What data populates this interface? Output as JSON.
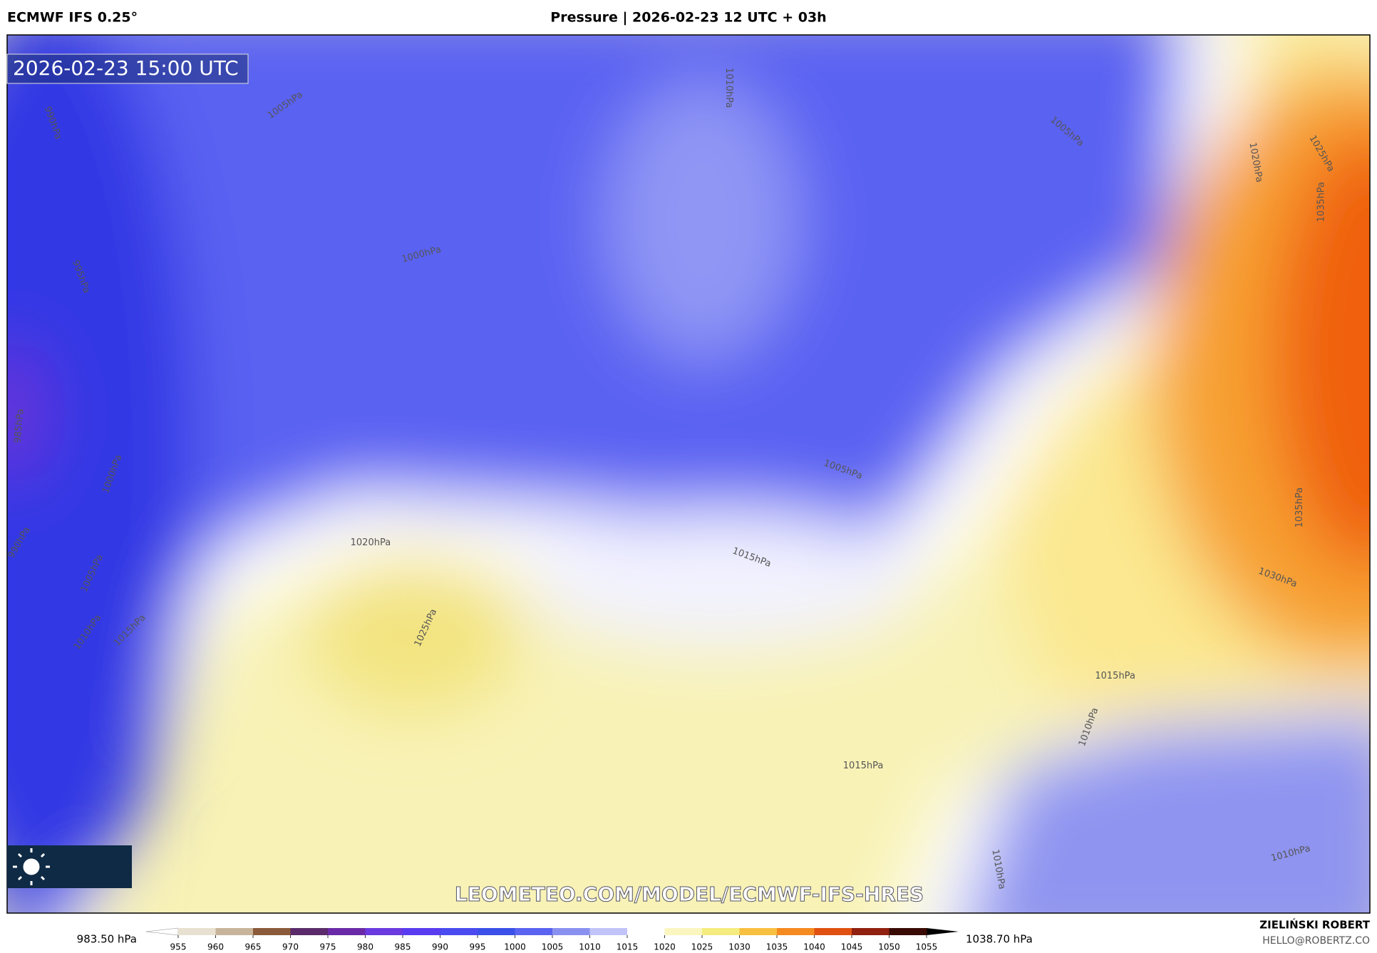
{
  "header": {
    "source": "ECMWF IFS 0.25°",
    "title": "Pressure | 2026-02-23 12 UTC + 03h"
  },
  "map": {
    "timestamp": "2026-02-23 15:00 UTC",
    "watermark": "LEOMETEO.COM/MODEL/ECMWF-IFS-HRES",
    "contour_labels": [
      "1005hPa",
      "1010hPa",
      "1005hPa",
      "1020hPa",
      "1025hPa",
      "1035hPa",
      "1000hPa",
      "995hPa",
      "990hPa",
      "985hPa",
      "1000hPa",
      "990hPa",
      "1005hPa",
      "1010hPa",
      "1015hPa",
      "1020hPa",
      "1025hPa",
      "1015hPa",
      "1005hPa",
      "1035hPa",
      "1030hPa",
      "1015hPa",
      "1010hPa",
      "1015hPa",
      "1010hPa",
      "1010hPa"
    ]
  },
  "colorbar": {
    "min_label": "983.50 hPa",
    "max_label": "1038.70 hPa",
    "ticks": [
      955,
      960,
      965,
      970,
      975,
      980,
      985,
      990,
      995,
      1000,
      1005,
      1010,
      1015,
      1020,
      1025,
      1030,
      1035,
      1040,
      1045,
      1050,
      1055
    ],
    "colors": [
      "#e8e0d0",
      "#c8b49a",
      "#8a5a3a",
      "#5a2a6a",
      "#6a2aa8",
      "#6a3ae0",
      "#5a3cf0",
      "#4a4af0",
      "#3a50e8",
      "#5a64f0",
      "#8a90f0",
      "#c0c4f8",
      "#ffffff",
      "#fbf5c0",
      "#f5ec80",
      "#f8c040",
      "#f58a20",
      "#e05010",
      "#902010",
      "#3a0a05"
    ],
    "under_color": "#ffffff",
    "over_color": "#000000"
  },
  "credits": {
    "author": "ZIELIŃSKI ROBERT",
    "email": "HELLO@ROBERTZ.CO"
  }
}
